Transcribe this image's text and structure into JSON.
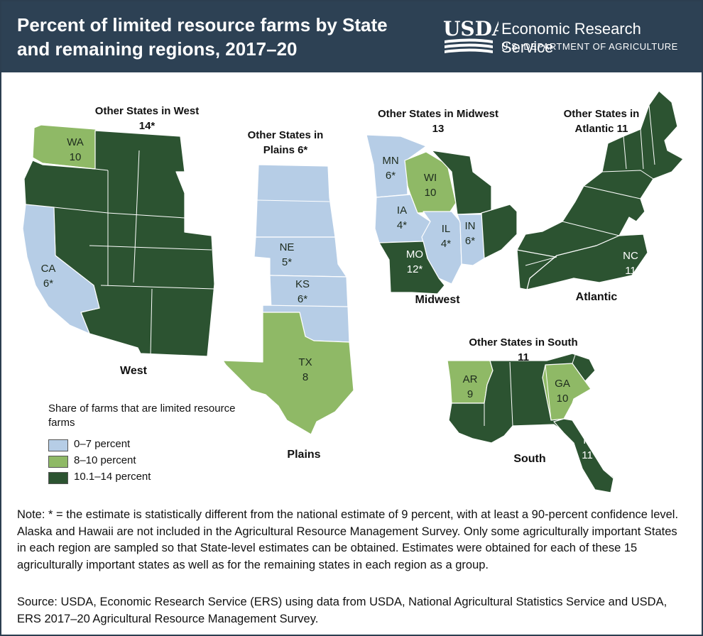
{
  "header": {
    "title": "Percent of limited resource farms by State\nand remaining regions, 2017–20",
    "logo_usda": "USDA",
    "logo_service": "Economic Research Service",
    "logo_dept": "U.S. DEPARTMENT OF AGRICULTURE"
  },
  "colors": {
    "low": "#b6cde6",
    "mid": "#8fb966",
    "high": "#2c5331",
    "header": "#2d4154"
  },
  "regions": {
    "west": {
      "name": "West",
      "other_label": "Other States in West",
      "other_value": "14*",
      "states": [
        {
          "abbr": "WA",
          "value": "10"
        },
        {
          "abbr": "CA",
          "value": "6*"
        }
      ]
    },
    "plains": {
      "name": "Plains",
      "other_label": "Other States in",
      "other_label2": "Plains 6*",
      "states": [
        {
          "abbr": "NE",
          "value": "5*"
        },
        {
          "abbr": "KS",
          "value": "6*"
        },
        {
          "abbr": "TX",
          "value": "8"
        }
      ]
    },
    "midwest": {
      "name": "Midwest",
      "other_label": "Other States in Midwest",
      "other_value": "13",
      "states": [
        {
          "abbr": "MN",
          "value": "6*"
        },
        {
          "abbr": "WI",
          "value": "10"
        },
        {
          "abbr": "IA",
          "value": "4*"
        },
        {
          "abbr": "IL",
          "value": "4*"
        },
        {
          "abbr": "IN",
          "value": "6*"
        },
        {
          "abbr": "MO",
          "value": "12*"
        }
      ]
    },
    "atlantic": {
      "name": "Atlantic",
      "other_label": "Other States in",
      "other_label2": "Atlantic 11",
      "states": [
        {
          "abbr": "NC",
          "value": "11"
        }
      ]
    },
    "south": {
      "name": "South",
      "other_label": "Other States in South",
      "other_value": "11",
      "states": [
        {
          "abbr": "AR",
          "value": "9"
        },
        {
          "abbr": "GA",
          "value": "10"
        },
        {
          "abbr": "FL",
          "value": "11*"
        }
      ]
    }
  },
  "legend": {
    "title": "Share of farms that are limited resource farms",
    "items": [
      {
        "label": "0–7 percent",
        "color": "#b6cde6"
      },
      {
        "label": "8–10 percent",
        "color": "#8fb966"
      },
      {
        "label": "10.1–14 percent",
        "color": "#2c5331"
      }
    ]
  },
  "note": "Note: * = the estimate is statistically different from the national estimate of 9 percent, with at least a 90-percent confidence level. Alaska and Hawaii are not included in the Agricultural Resource Management Survey. Only some agriculturally important States in each region are sampled so that State-level estimates can be obtained. Estimates were obtained for each of these 15 agriculturally important states as well as for the remaining states in each region as a group.",
  "source": "Source: USDA, Economic Research Service (ERS) using data from USDA, National Agricultural Statistics Service and USDA, ERS 2017–20 Agricultural Resource Management Survey."
}
